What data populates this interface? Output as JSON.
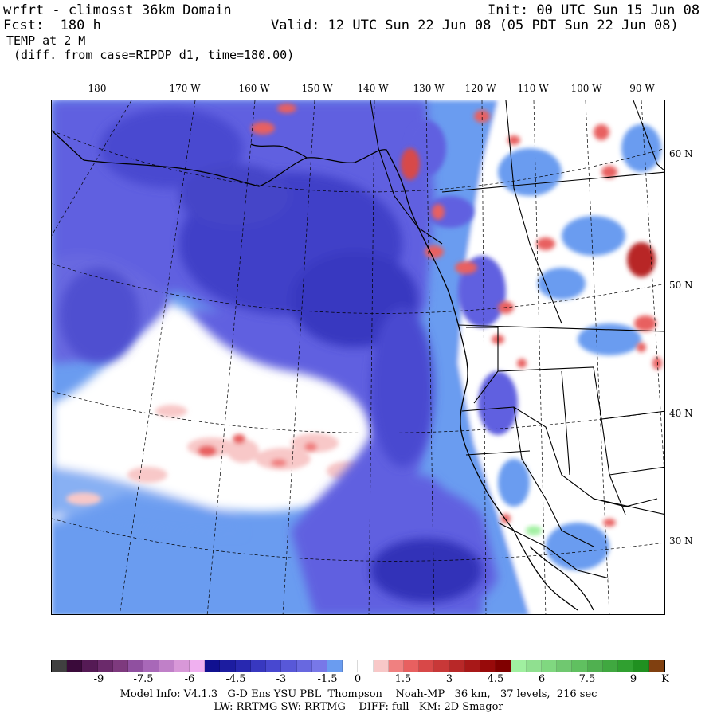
{
  "header": {
    "model_title": "wrfrt - climosst 36km Domain",
    "init": "Init: 00 UTC Sun 15 Jun 08",
    "fcst": "Fcst:  180 h",
    "valid": "Valid: 12 UTC Sun 22 Jun 08 (05 PDT Sun 22 Jun 08)",
    "field": "TEMP at 2 M",
    "diff": " (diff. from case=RIPDP d1, time=180.00)"
  },
  "map": {
    "longitude_labels": [
      "180",
      "170 W",
      "160 W",
      "150 W",
      "140 W",
      "130 W",
      "120 W",
      "110 W",
      "100 W",
      "90 W"
    ],
    "latitude_labels": [
      "60 N",
      "50 N",
      "40 N",
      "30 N"
    ],
    "colors": {
      "ocean_cool": "#4848d8",
      "ocean_cool_dark": "#2828b0",
      "mid_blue": "#7070e8",
      "light_blue": "#6a9cf0",
      "pale_pink": "#f8c8c8",
      "mid_red": "#e86060",
      "dark_red": "#b02020",
      "outline": "#000000"
    }
  },
  "colorbar": {
    "colors": [
      "#404040",
      "#3a0a3a",
      "#551a55",
      "#6b2a6b",
      "#7e3a7e",
      "#9050a0",
      "#a868b8",
      "#c080c8",
      "#d898d8",
      "#f0b0f0",
      "#101090",
      "#1c1ca0",
      "#2828b0",
      "#3838c0",
      "#4848d0",
      "#5858d8",
      "#6868e0",
      "#7878e8",
      "#6a9cf0",
      "#ffffff",
      "#ffffff",
      "#f8c8c8",
      "#f08080",
      "#e86060",
      "#d84848",
      "#c83838",
      "#b82828",
      "#a81818",
      "#980a0a",
      "#800000",
      "#a0f0a0",
      "#90e090",
      "#80d880",
      "#70c870",
      "#60c060",
      "#50b050",
      "#40a840",
      "#30a030",
      "#209020",
      "#804010"
    ],
    "tick_labels": [
      "-9",
      "-7.5",
      "-6",
      "-4.5",
      "-3",
      "-1.5",
      "0",
      "1.5",
      "3",
      "4.5",
      "6",
      "7.5",
      "9",
      "K"
    ]
  },
  "footer": {
    "model_info": "Model Info: V4.1.3   G-D Ens YSU PBL  Thompson    Noah-MP   36 km,   37 levels,  216 sec",
    "physics": "LW: RRTMG SW: RRTMG    DIFF: full   KM: 2D Smagor"
  }
}
